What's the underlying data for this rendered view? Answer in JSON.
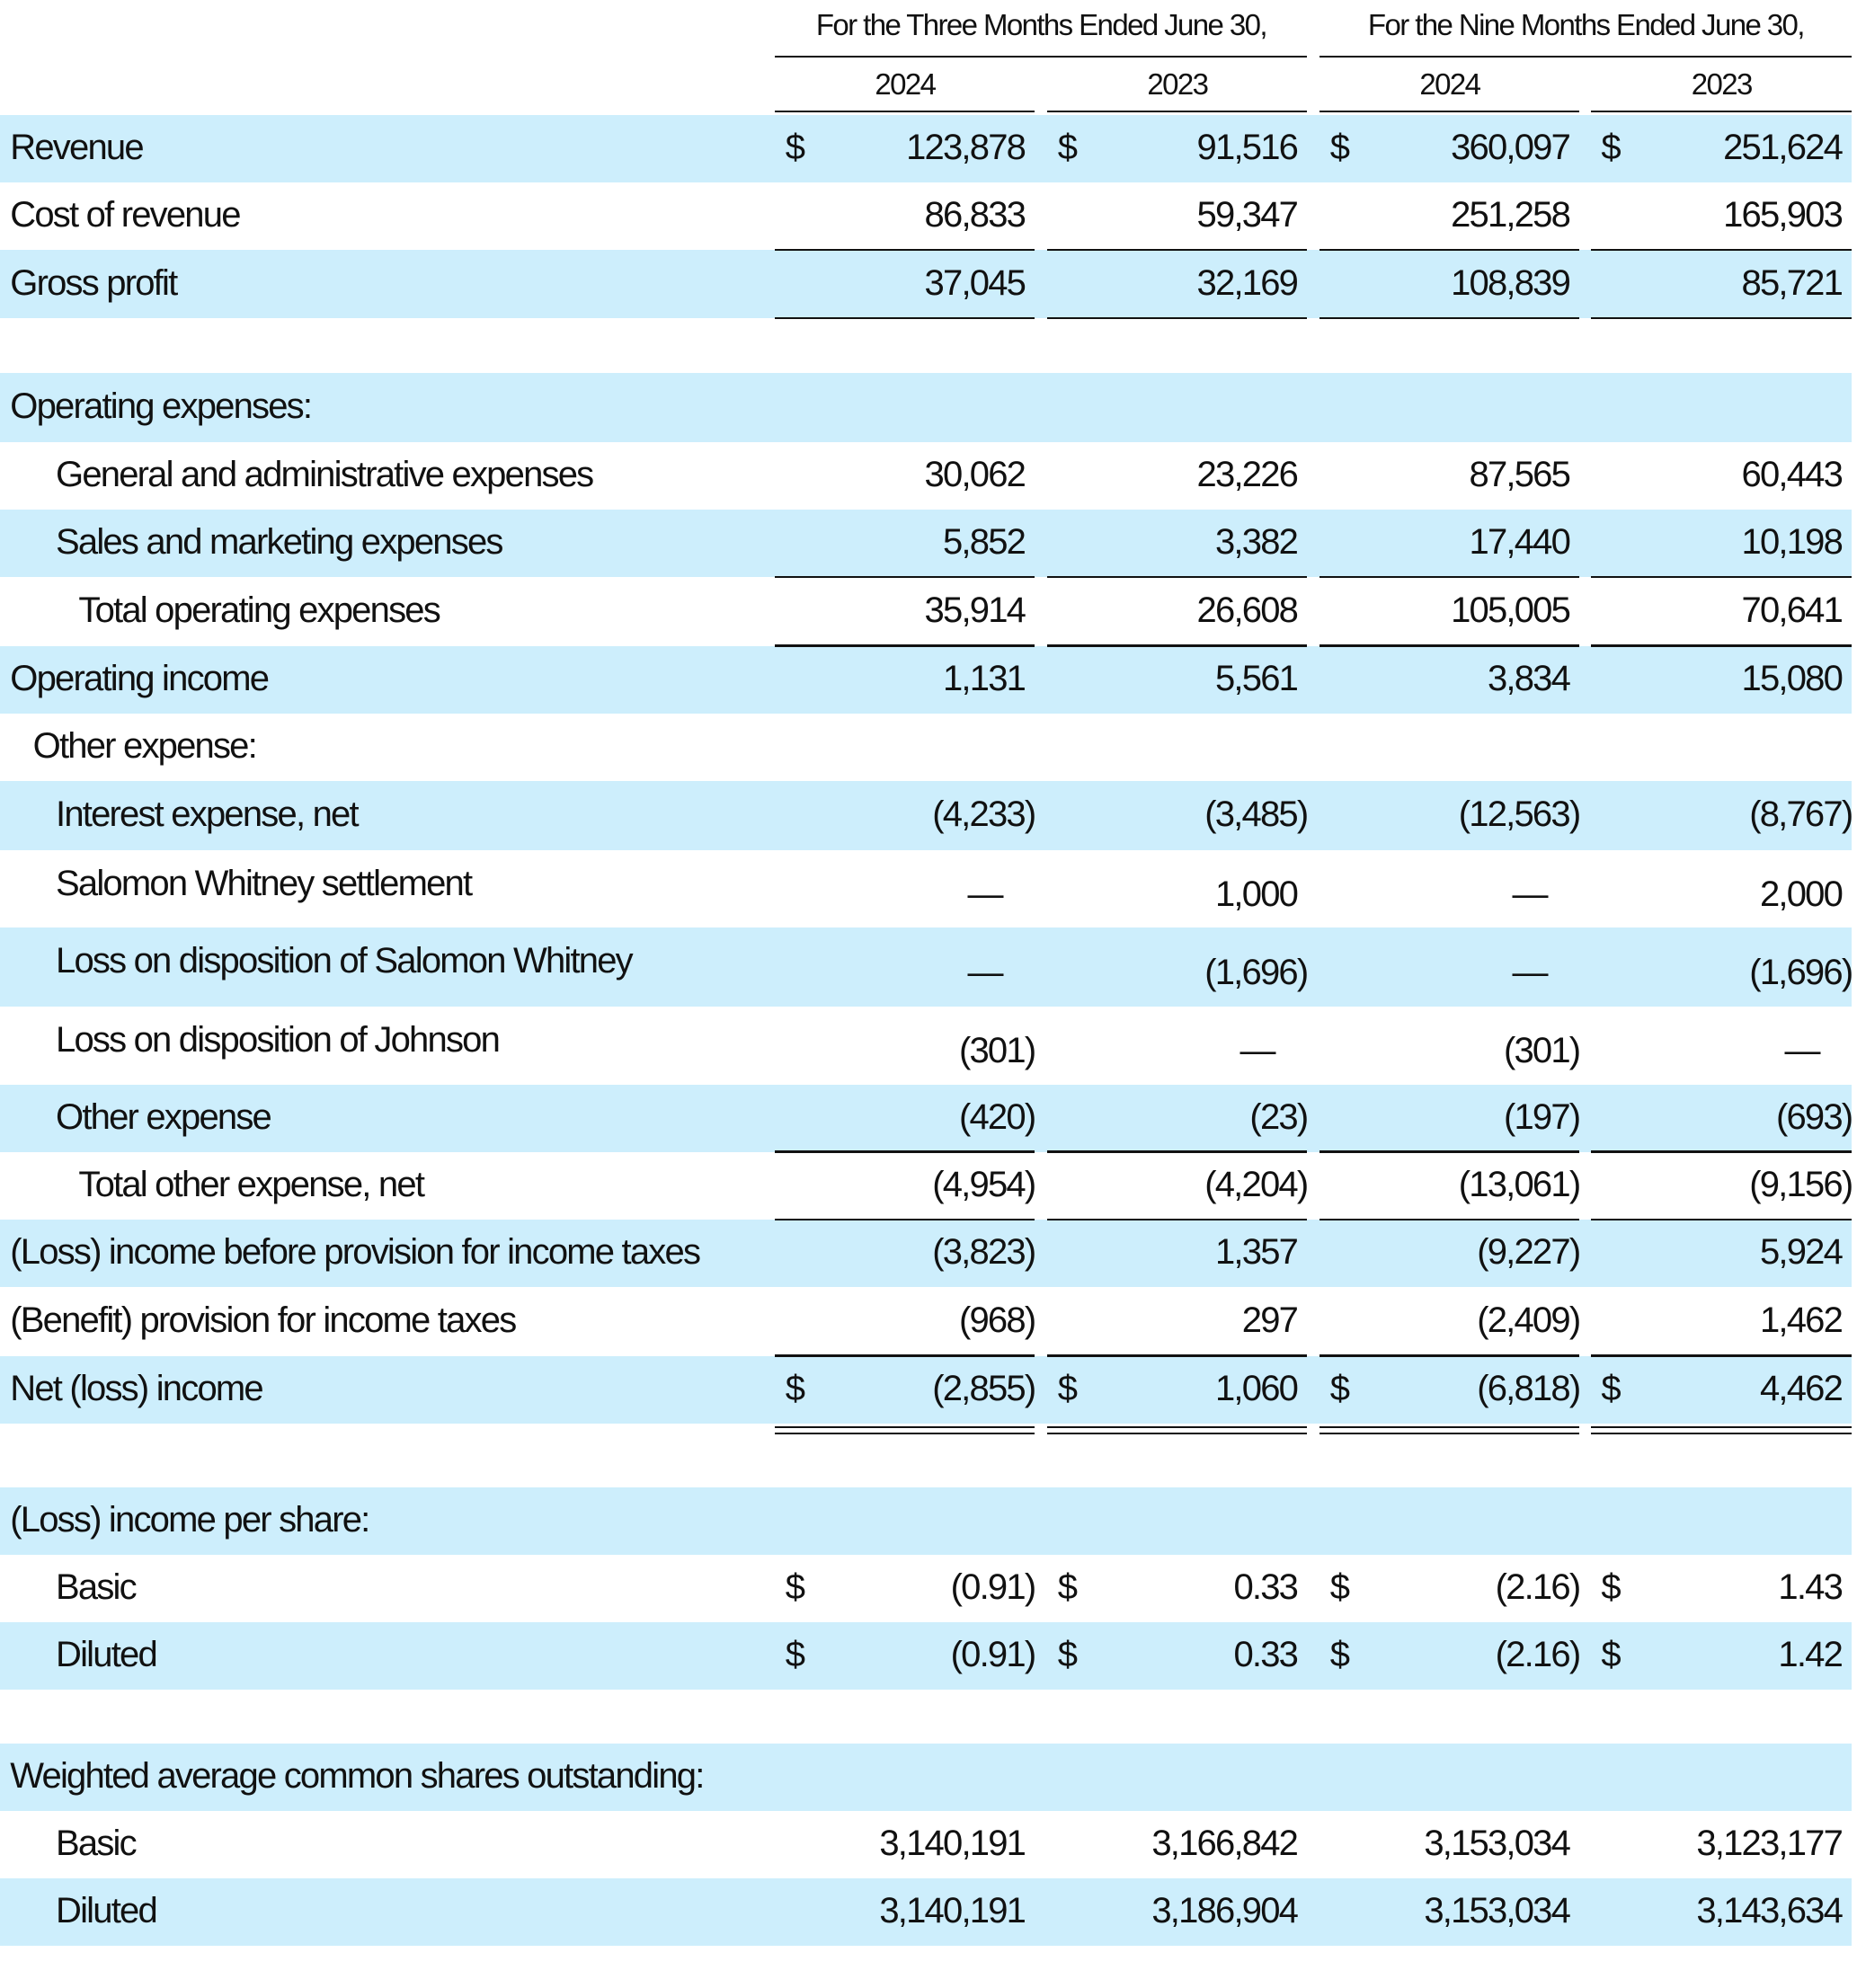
{
  "header": {
    "groups": [
      "For the Three Months Ended June 30,",
      "For the Nine Months Ended June 30,"
    ],
    "years": [
      "2024",
      "2023",
      "2024",
      "2023"
    ]
  },
  "currency": "$",
  "rows": [
    {
      "label": "Revenue",
      "values": [
        "123,878",
        "91,516",
        "360,097",
        "251,624"
      ],
      "dollar": true
    },
    {
      "label": "Cost of revenue",
      "values": [
        "86,833",
        "59,347",
        "251,258",
        "165,903"
      ]
    },
    {
      "label": "Gross profit",
      "values": [
        "37,045",
        "32,169",
        "108,839",
        "85,721"
      ]
    },
    {
      "label": "Operating expenses:"
    },
    {
      "label": "General and administrative expenses",
      "values": [
        "30,062",
        "23,226",
        "87,565",
        "60,443"
      ]
    },
    {
      "label": "Sales and marketing expenses",
      "values": [
        "5,852",
        "3,382",
        "17,440",
        "10,198"
      ]
    },
    {
      "label": "Total operating expenses",
      "values": [
        "35,914",
        "26,608",
        "105,005",
        "70,641"
      ]
    },
    {
      "label": "Operating income",
      "values": [
        "1,131",
        "5,561",
        "3,834",
        "15,080"
      ]
    },
    {
      "label": "Other expense:"
    },
    {
      "label": "Interest expense, net",
      "values": [
        "(4,233)",
        "(3,485)",
        "(12,563)",
        "(8,767)"
      ]
    },
    {
      "label": "Salomon Whitney settlement",
      "values": [
        "—",
        "1,000",
        "—",
        "2,000"
      ]
    },
    {
      "label": "Loss on disposition of Salomon Whitney",
      "values": [
        "—",
        "(1,696)",
        "—",
        "(1,696)"
      ]
    },
    {
      "label": "Loss on disposition of Johnson",
      "values": [
        "(301)",
        "—",
        "(301)",
        "—"
      ]
    },
    {
      "label": "Other expense",
      "values": [
        "(420)",
        "(23)",
        "(197)",
        "(693)"
      ]
    },
    {
      "label": "Total other expense, net",
      "values": [
        "(4,954)",
        "(4,204)",
        "(13,061)",
        "(9,156)"
      ]
    },
    {
      "label": "(Loss) income before provision for income taxes",
      "values": [
        "(3,823)",
        "1,357",
        "(9,227)",
        "5,924"
      ]
    },
    {
      "label": "(Benefit) provision for income taxes",
      "values": [
        "(968)",
        "297",
        "(2,409)",
        "1,462"
      ]
    },
    {
      "label": "Net (loss) income",
      "values": [
        "(2,855)",
        "1,060",
        "(6,818)",
        "4,462"
      ],
      "dollar": true
    },
    {
      "label": "(Loss) income per share:"
    },
    {
      "label": "Basic",
      "values": [
        "(0.91)",
        "0.33",
        "(2.16)",
        "1.43"
      ],
      "dollar": true
    },
    {
      "label": "Diluted",
      "values": [
        "(0.91)",
        "0.33",
        "(2.16)",
        "1.42"
      ],
      "dollar": true
    },
    {
      "label": "Weighted average common shares outstanding:"
    },
    {
      "label": "Basic",
      "values": [
        "3,140,191",
        "3,166,842",
        "3,153,034",
        "3,123,177"
      ]
    },
    {
      "label": "Diluted",
      "values": [
        "3,140,191",
        "3,186,904",
        "3,153,034",
        "3,143,634"
      ]
    }
  ]
}
